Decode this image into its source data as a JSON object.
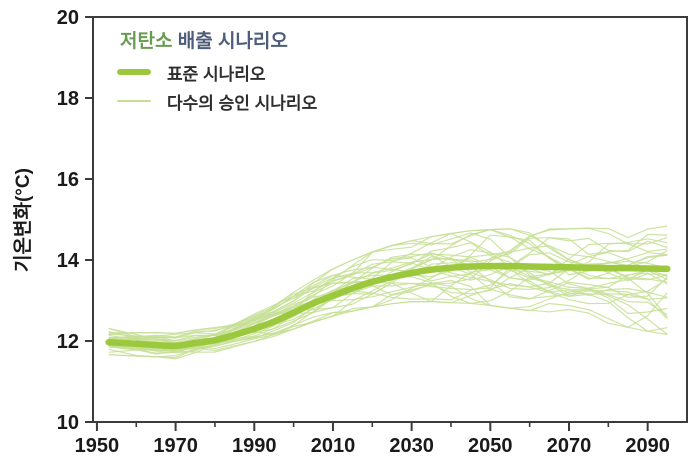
{
  "colors": {
    "standard_line": "#9cc83d",
    "ensemble_line": "#c6df95",
    "legend_title_green": "#6a9b52",
    "legend_title_slate": "#4e5d7a",
    "axis": "#3b3b3b",
    "text": "#1a1a1a",
    "background": "#ffffff"
  },
  "y_axis": {
    "title": "기온변화(°C)",
    "ticks": [
      20,
      18,
      16,
      14,
      12,
      10
    ],
    "range": [
      10,
      20
    ]
  },
  "x_axis": {
    "major_ticks": [
      1950,
      1970,
      1990,
      2010,
      2030,
      2050,
      2070,
      2090
    ],
    "minor_step": 10,
    "range": [
      1949,
      2100
    ]
  },
  "legend": {
    "title_part1": "저탄소",
    "title_part2": " 배출 시나리오",
    "items": [
      {
        "label": "표준 시나리오",
        "style": "thick"
      },
      {
        "label": "다수의 승인 시나리오",
        "style": "thin"
      }
    ]
  },
  "chart_data": {
    "type": "line",
    "title": "저탄소 배출 시나리오",
    "xlabel": "",
    "ylabel": "기온변화(°C)",
    "xlim": [
      1949,
      2100
    ],
    "ylim": [
      10,
      20
    ],
    "grid": false,
    "legend_position": "top-left",
    "x": [
      1953,
      1960,
      1965,
      1970,
      1975,
      1980,
      1985,
      1990,
      1995,
      2000,
      2005,
      2010,
      2015,
      2020,
      2025,
      2030,
      2035,
      2040,
      2045,
      2050,
      2055,
      2060,
      2065,
      2070,
      2075,
      2080,
      2085,
      2090,
      2095
    ],
    "series": [
      {
        "name": "표준 시나리오",
        "type": "thick-line",
        "values": [
          11.97,
          11.93,
          11.9,
          11.88,
          11.95,
          12.02,
          12.15,
          12.3,
          12.48,
          12.7,
          12.93,
          13.12,
          13.3,
          13.46,
          13.58,
          13.68,
          13.76,
          13.81,
          13.84,
          13.85,
          13.85,
          13.84,
          13.83,
          13.82,
          13.81,
          13.8,
          13.8,
          13.79,
          13.78
        ]
      },
      {
        "name": "다수의 승인 시나리오",
        "type": "ensemble-band",
        "members": 30,
        "band_min": [
          11.65,
          11.62,
          11.6,
          11.55,
          11.65,
          11.72,
          11.85,
          11.98,
          12.1,
          12.28,
          12.45,
          12.6,
          12.72,
          12.82,
          12.9,
          12.95,
          12.95,
          12.92,
          12.9,
          12.85,
          12.78,
          12.72,
          12.65,
          12.58,
          12.5,
          12.4,
          12.3,
          12.2,
          12.12
        ],
        "band_max": [
          12.35,
          12.28,
          12.22,
          12.2,
          12.28,
          12.35,
          12.52,
          12.72,
          12.95,
          13.22,
          13.52,
          13.8,
          14.02,
          14.22,
          14.38,
          14.5,
          14.6,
          14.68,
          14.75,
          14.78,
          14.8,
          14.8,
          14.8,
          14.8,
          14.82,
          14.85,
          14.88,
          14.88,
          14.88
        ]
      }
    ]
  }
}
